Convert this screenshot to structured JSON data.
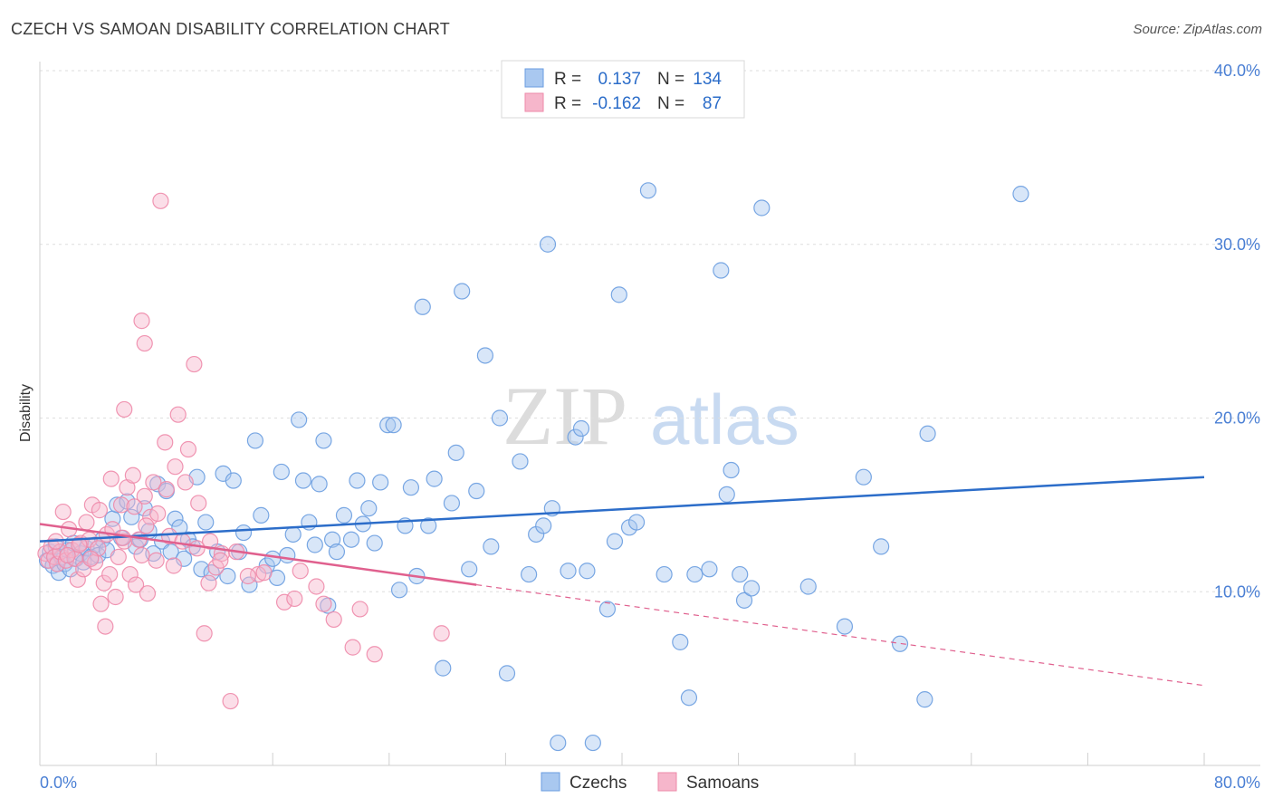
{
  "header": {
    "title": "CZECH VS SAMOAN DISABILITY CORRELATION CHART",
    "source": "Source: ZipAtlas.com"
  },
  "watermark": {
    "zip": "ZIP",
    "atlas": "atlas"
  },
  "stats": {
    "r_label": "R =",
    "n_label": "N =",
    "rows": [
      {
        "r": "0.137",
        "n": "134"
      },
      {
        "r": "-0.162",
        "n": "87"
      }
    ]
  },
  "colors": {
    "czech_fill": "#a9c8f0",
    "czech_stroke": "#6a9de0",
    "czech_line": "#2c6dc9",
    "samoan_fill": "#f6b6cb",
    "samoan_stroke": "#ee8aaa",
    "samoan_line": "#e0608e",
    "accent_text": "#2c6dc9"
  },
  "chart_data": {
    "type": "scatter",
    "title": "CZECH VS SAMOAN DISABILITY CORRELATION CHART",
    "xlabel": "",
    "ylabel": "Disability",
    "xlim": [
      0,
      80
    ],
    "ylim": [
      0,
      40
    ],
    "x_tick_labels": [
      "0.0%",
      "80.0%"
    ],
    "y_ticks": [
      10,
      20,
      30,
      40
    ],
    "y_tick_labels": [
      "10.0%",
      "20.0%",
      "30.0%",
      "40.0%"
    ],
    "grid": true,
    "legend_position": "bottom",
    "series": [
      {
        "name": "Czechs",
        "R": 0.137,
        "N": 134,
        "trend": {
          "x": [
            0,
            80
          ],
          "y": [
            12.9,
            16.6
          ]
        },
        "points": [
          [
            0.5,
            11.8
          ],
          [
            0.7,
            12.3
          ],
          [
            0.9,
            11.5
          ],
          [
            1.1,
            12.6
          ],
          [
            1.3,
            11.1
          ],
          [
            1.5,
            12.0
          ],
          [
            1.7,
            11.6
          ],
          [
            1.9,
            12.4
          ],
          [
            2.1,
            11.3
          ],
          [
            2.3,
            12.8
          ],
          [
            2.5,
            11.9
          ],
          [
            2.8,
            12.2
          ],
          [
            3.0,
            11.7
          ],
          [
            3.2,
            12.5
          ],
          [
            3.5,
            12.0
          ],
          [
            3.8,
            12.7
          ],
          [
            4.0,
            12.1
          ],
          [
            4.3,
            13.0
          ],
          [
            4.6,
            12.4
          ],
          [
            5.0,
            14.2
          ],
          [
            5.3,
            15.0
          ],
          [
            5.6,
            13.1
          ],
          [
            6.0,
            15.2
          ],
          [
            6.3,
            14.3
          ],
          [
            6.6,
            12.6
          ],
          [
            6.9,
            13.0
          ],
          [
            7.2,
            14.8
          ],
          [
            7.5,
            13.5
          ],
          [
            7.8,
            12.2
          ],
          [
            8.1,
            16.2
          ],
          [
            8.4,
            12.9
          ],
          [
            8.7,
            15.8
          ],
          [
            9.0,
            12.3
          ],
          [
            9.3,
            14.2
          ],
          [
            9.6,
            13.7
          ],
          [
            9.9,
            11.9
          ],
          [
            10.2,
            13.0
          ],
          [
            10.5,
            12.6
          ],
          [
            10.8,
            16.6
          ],
          [
            11.1,
            11.3
          ],
          [
            11.4,
            14.0
          ],
          [
            11.8,
            11.1
          ],
          [
            12.2,
            12.3
          ],
          [
            12.6,
            16.8
          ],
          [
            12.9,
            10.9
          ],
          [
            13.3,
            16.4
          ],
          [
            13.7,
            12.3
          ],
          [
            14.0,
            13.4
          ],
          [
            14.4,
            10.4
          ],
          [
            14.8,
            18.7
          ],
          [
            15.2,
            14.4
          ],
          [
            15.6,
            11.5
          ],
          [
            16.0,
            11.9
          ],
          [
            16.3,
            10.8
          ],
          [
            16.6,
            16.9
          ],
          [
            17.0,
            12.1
          ],
          [
            17.4,
            13.3
          ],
          [
            17.8,
            19.9
          ],
          [
            18.1,
            16.4
          ],
          [
            18.5,
            14.0
          ],
          [
            18.9,
            12.7
          ],
          [
            19.2,
            16.2
          ],
          [
            19.5,
            18.7
          ],
          [
            19.8,
            9.2
          ],
          [
            20.1,
            13.0
          ],
          [
            20.4,
            12.3
          ],
          [
            20.9,
            14.4
          ],
          [
            21.4,
            13.0
          ],
          [
            21.8,
            16.4
          ],
          [
            22.2,
            13.9
          ],
          [
            22.6,
            14.8
          ],
          [
            23.0,
            12.8
          ],
          [
            23.4,
            16.3
          ],
          [
            23.9,
            19.6
          ],
          [
            24.3,
            19.6
          ],
          [
            24.7,
            10.1
          ],
          [
            25.1,
            13.8
          ],
          [
            25.5,
            16.0
          ],
          [
            25.9,
            10.9
          ],
          [
            26.3,
            26.4
          ],
          [
            26.7,
            13.8
          ],
          [
            27.1,
            16.5
          ],
          [
            27.7,
            5.6
          ],
          [
            28.3,
            15.1
          ],
          [
            28.6,
            18.0
          ],
          [
            29.0,
            27.3
          ],
          [
            29.5,
            11.3
          ],
          [
            30.0,
            15.8
          ],
          [
            30.6,
            23.6
          ],
          [
            31.0,
            12.6
          ],
          [
            31.6,
            20.0
          ],
          [
            32.1,
            5.3
          ],
          [
            33.0,
            17.5
          ],
          [
            33.6,
            11.0
          ],
          [
            34.1,
            13.3
          ],
          [
            34.6,
            13.8
          ],
          [
            34.9,
            30.0
          ],
          [
            35.2,
            14.8
          ],
          [
            35.6,
            1.3
          ],
          [
            36.3,
            11.2
          ],
          [
            36.8,
            18.9
          ],
          [
            37.2,
            19.4
          ],
          [
            37.6,
            11.2
          ],
          [
            38.0,
            1.3
          ],
          [
            39.0,
            9.0
          ],
          [
            39.5,
            12.9
          ],
          [
            39.8,
            27.1
          ],
          [
            40.5,
            13.7
          ],
          [
            41.0,
            14.0
          ],
          [
            41.8,
            33.1
          ],
          [
            42.9,
            11.0
          ],
          [
            44.0,
            7.1
          ],
          [
            44.6,
            3.9
          ],
          [
            45.0,
            11.0
          ],
          [
            46.0,
            11.3
          ],
          [
            46.8,
            28.5
          ],
          [
            47.2,
            15.6
          ],
          [
            47.5,
            17.0
          ],
          [
            48.1,
            11.0
          ],
          [
            48.4,
            9.5
          ],
          [
            48.9,
            10.2
          ],
          [
            49.6,
            32.1
          ],
          [
            52.8,
            10.3
          ],
          [
            55.3,
            8.0
          ],
          [
            56.6,
            16.6
          ],
          [
            57.8,
            12.6
          ],
          [
            59.1,
            7.0
          ],
          [
            60.8,
            3.8
          ],
          [
            61.0,
            19.1
          ],
          [
            67.4,
            32.9
          ]
        ]
      },
      {
        "name": "Samoans",
        "R": -0.162,
        "N": 87,
        "trend": {
          "x": [
            0,
            30
          ],
          "y": [
            13.9,
            10.4
          ]
        },
        "trend_extension": {
          "x": [
            30,
            80
          ],
          "y": [
            10.4,
            4.6
          ]
        },
        "points": [
          [
            0.4,
            12.2
          ],
          [
            0.6,
            11.8
          ],
          [
            0.8,
            12.6
          ],
          [
            1.0,
            12.0
          ],
          [
            1.2,
            11.6
          ],
          [
            1.4,
            12.3
          ],
          [
            1.6,
            14.6
          ],
          [
            1.8,
            11.8
          ],
          [
            2.0,
            13.6
          ],
          [
            2.2,
            12.4
          ],
          [
            2.4,
            11.9
          ],
          [
            2.6,
            10.7
          ],
          [
            2.8,
            12.8
          ],
          [
            3.0,
            11.3
          ],
          [
            3.2,
            14.0
          ],
          [
            3.4,
            13.0
          ],
          [
            3.6,
            15.0
          ],
          [
            3.8,
            11.7
          ],
          [
            4.0,
            12.5
          ],
          [
            4.2,
            9.3
          ],
          [
            4.4,
            10.5
          ],
          [
            4.6,
            13.3
          ],
          [
            4.8,
            11.0
          ],
          [
            5.0,
            13.6
          ],
          [
            5.2,
            9.7
          ],
          [
            5.4,
            12.0
          ],
          [
            5.6,
            15.0
          ],
          [
            5.8,
            12.9
          ],
          [
            6.0,
            16.0
          ],
          [
            6.2,
            11.0
          ],
          [
            6.4,
            16.7
          ],
          [
            6.6,
            10.4
          ],
          [
            6.8,
            13.0
          ],
          [
            7.0,
            12.1
          ],
          [
            7.2,
            15.5
          ],
          [
            7.4,
            9.9
          ],
          [
            7.6,
            14.3
          ],
          [
            7.8,
            16.3
          ],
          [
            8.0,
            11.8
          ],
          [
            8.3,
            32.5
          ],
          [
            8.6,
            18.6
          ],
          [
            8.9,
            13.2
          ],
          [
            9.2,
            11.5
          ],
          [
            9.5,
            20.2
          ],
          [
            9.8,
            12.9
          ],
          [
            10.2,
            18.2
          ],
          [
            10.6,
            23.1
          ],
          [
            10.9,
            15.1
          ],
          [
            11.3,
            7.6
          ],
          [
            11.7,
            12.9
          ],
          [
            12.1,
            11.4
          ],
          [
            12.5,
            12.2
          ],
          [
            13.1,
            3.7
          ],
          [
            15.0,
            11.0
          ],
          [
            15.4,
            11.1
          ],
          [
            16.8,
            9.4
          ],
          [
            17.5,
            9.6
          ],
          [
            19.5,
            9.3
          ],
          [
            21.5,
            6.8
          ],
          [
            23.0,
            6.4
          ],
          [
            27.6,
            7.6
          ],
          [
            7.0,
            25.6
          ],
          [
            7.2,
            24.3
          ],
          [
            5.8,
            20.5
          ],
          [
            1.1,
            12.9
          ],
          [
            1.9,
            12.1
          ],
          [
            2.7,
            12.7
          ],
          [
            3.5,
            11.9
          ],
          [
            4.1,
            14.7
          ],
          [
            4.9,
            16.5
          ],
          [
            5.7,
            13.1
          ],
          [
            6.5,
            14.9
          ],
          [
            7.3,
            13.8
          ],
          [
            8.1,
            14.5
          ],
          [
            8.7,
            15.9
          ],
          [
            9.3,
            17.2
          ],
          [
            10.0,
            16.3
          ],
          [
            10.8,
            12.5
          ],
          [
            11.6,
            10.5
          ],
          [
            12.4,
            11.8
          ],
          [
            13.5,
            12.3
          ],
          [
            14.3,
            10.9
          ],
          [
            17.9,
            11.2
          ],
          [
            19.0,
            10.3
          ],
          [
            20.2,
            8.4
          ],
          [
            22.0,
            9.0
          ],
          [
            4.5,
            8.0
          ]
        ]
      }
    ]
  },
  "legend": {
    "czechs": "Czechs",
    "samoans": "Samoans"
  }
}
